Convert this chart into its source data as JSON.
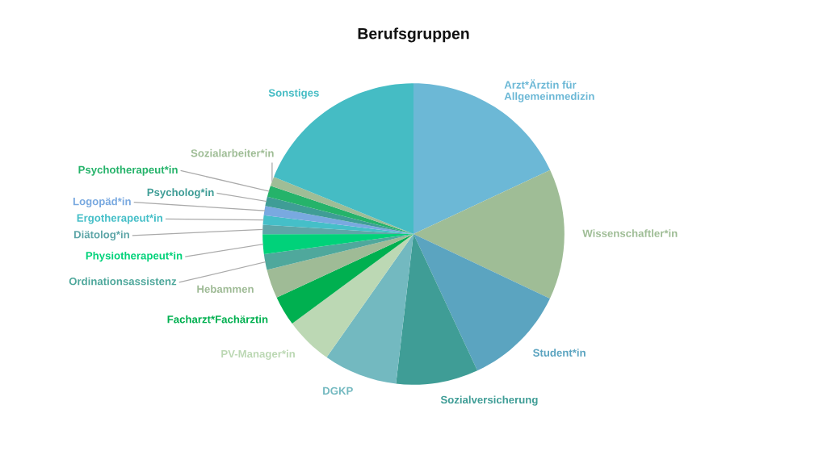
{
  "chart_data": {
    "type": "pie",
    "title": "Berufsgruppen",
    "categories": [
      "Arzt*Ärztin für\nAllgemeinmedizin",
      "Wissenschaftler*in",
      "Student*in",
      "Sozialversicherung",
      "DGKP",
      "PV-Manager*in",
      "Facharzt*Fachärztin",
      "Hebammen",
      "Ordinationsassistenz",
      "Physiotherapeut*in",
      "Diätolog*in",
      "Ergotherapeut*in",
      "Logopäd*in",
      "Psycholog*in",
      "Psychotherapeut*in",
      "Sozialarbeiter*in",
      "Sonstiges"
    ],
    "values": [
      18,
      14,
      11,
      8.8,
      7.9,
      5.1,
      3.2,
      3.1,
      1.7,
      2.1,
      1.0,
      1.0,
      1.0,
      1.0,
      1.2,
      1.0,
      18.8
    ],
    "colors": [
      "#6cb8d6",
      "#9fbd96",
      "#5ba4c0",
      "#3f9d96",
      "#73b9c0",
      "#bcd8b4",
      "#00b050",
      "#9fbb96",
      "#4fa89c",
      "#00d27a",
      "#5ea6a8",
      "#45bfc8",
      "#79a9e0",
      "#3f9d96",
      "#25b36a",
      "#9fbd96",
      "#45bcc4"
    ]
  }
}
